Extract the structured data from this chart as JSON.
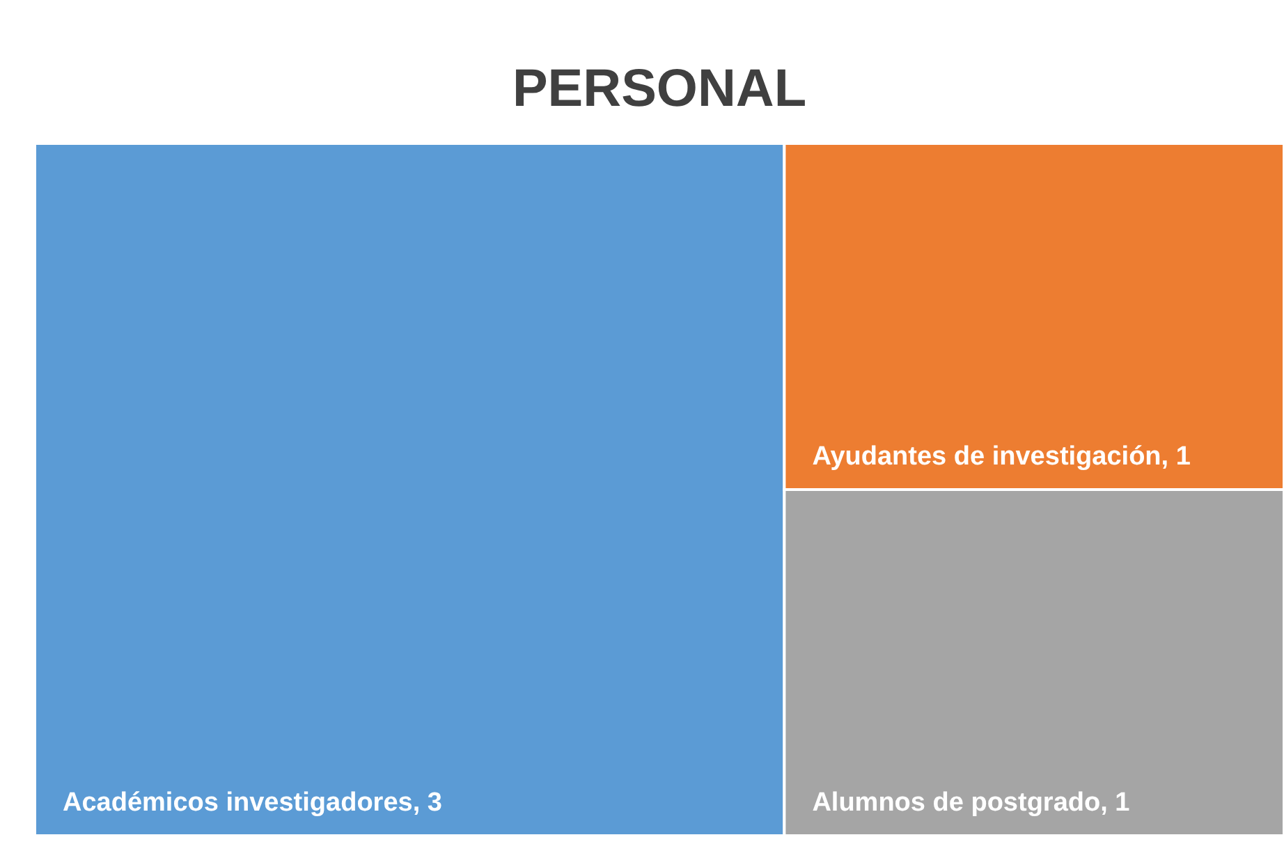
{
  "chart_data": {
    "type": "other",
    "title": "PERSONAL",
    "categories": [
      "Académicos investigadores",
      "Ayudantes de investigación",
      "Alumnos de postgrado"
    ],
    "values": [
      3,
      1,
      1
    ],
    "colors": [
      "#5b9bd5",
      "#ed7d31",
      "#a5a5a5"
    ],
    "value_labels": [
      ", 3",
      ", 1",
      ", 1"
    ]
  }
}
